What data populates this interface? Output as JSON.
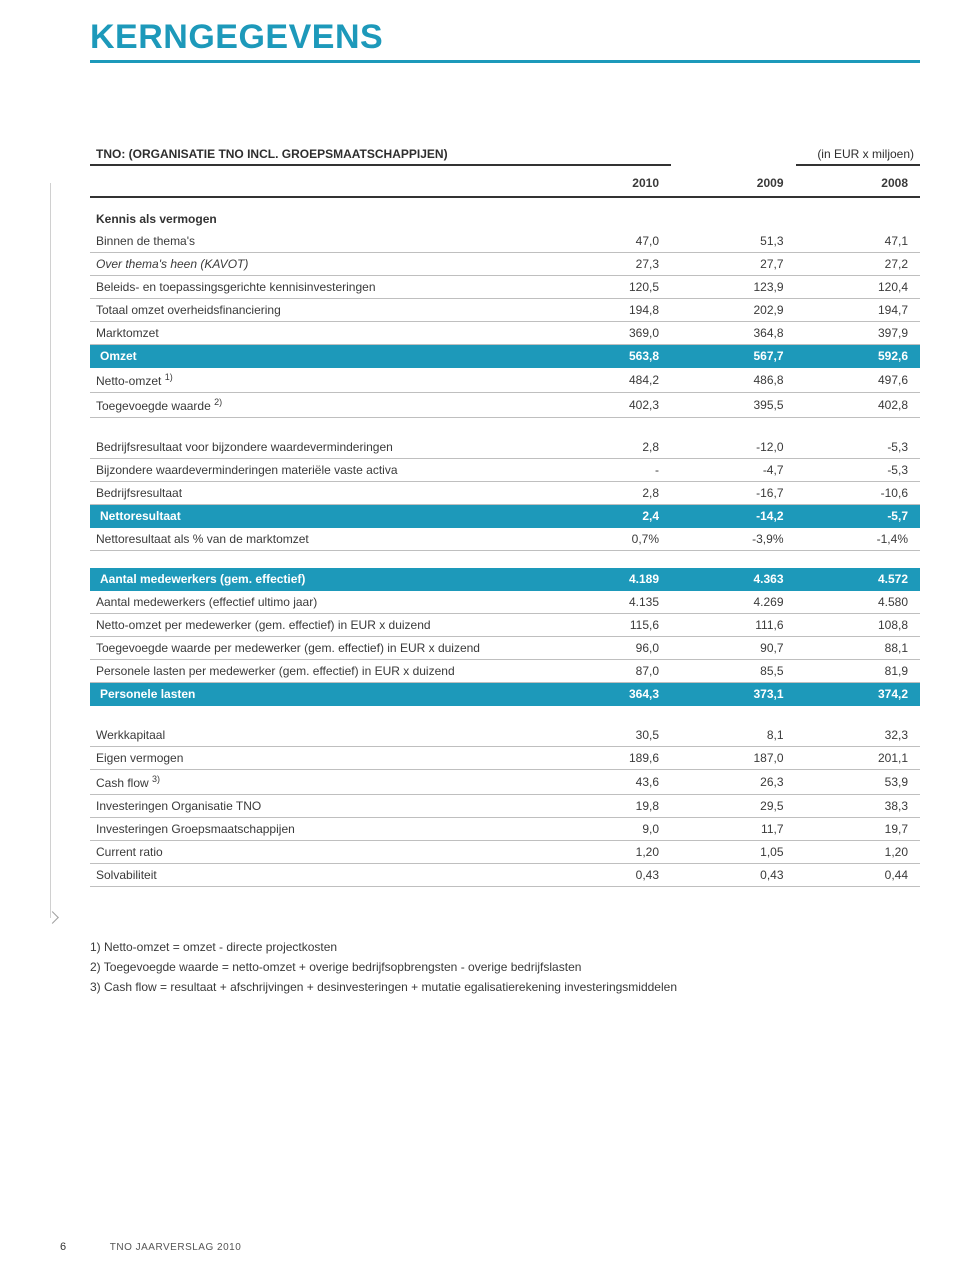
{
  "page_title": "KERNGEGEVENS",
  "subtitle": "TNO: (ORGANISATIE TNO INCL. GROEPSMAATSCHAPPIJEN)",
  "unit_label": "(in EUR x miljoen)",
  "colors": {
    "accent": "#1d99ba",
    "text": "#3a3a3a",
    "rule": "#bfbfbf",
    "heavy_rule": "#333333",
    "row_highlight_bg": "#1d99ba",
    "row_highlight_text": "#ffffff"
  },
  "years": [
    "2010",
    "2009",
    "2008"
  ],
  "sections": [
    {
      "heading": "Kennis als vermogen",
      "rows": [
        {
          "label": "Binnen de thema's",
          "fstyle": "italic",
          "vals": [
            "47,0",
            "51,3",
            "47,1"
          ]
        },
        {
          "label": "Over thema's heen (KAVOT)",
          "style": "italic",
          "vals": [
            "27,3",
            "27,7",
            "27,2"
          ]
        },
        {
          "label": "Beleids- en toepassingsgerichte kennisinvesteringen",
          "vals": [
            "120,5",
            "123,9",
            "120,4"
          ]
        },
        {
          "label": "Totaal omzet overheidsfinanciering",
          "vals": [
            "194,8",
            "202,9",
            "194,7"
          ]
        },
        {
          "label": "Marktomzet",
          "vals": [
            "369,0",
            "364,8",
            "397,9"
          ]
        },
        {
          "label": "Omzet",
          "highlight": true,
          "vals": [
            "563,8",
            "567,7",
            "592,6"
          ]
        },
        {
          "label": "Netto-omzet",
          "sup": "1)",
          "vals": [
            "484,2",
            "486,8",
            "497,6"
          ]
        },
        {
          "label": "Toegevoegde waarde",
          "sup": "2)",
          "vals": [
            "402,3",
            "395,5",
            "402,8"
          ]
        }
      ]
    },
    {
      "rows": [
        {
          "label": "Bedrijfsresultaat voor bijzondere waardeverminderingen",
          "vals": [
            "2,8",
            "-12,0",
            "-5,3"
          ]
        },
        {
          "label": "Bijzondere waardeverminderingen materiële vaste activa",
          "vals": [
            "-",
            "-4,7",
            "-5,3"
          ]
        },
        {
          "label": "Bedrijfsresultaat",
          "vals": [
            "2,8",
            "-16,7",
            "-10,6"
          ]
        },
        {
          "label": "Nettoresultaat",
          "highlight": true,
          "vals": [
            "2,4",
            "-14,2",
            "-5,7"
          ]
        },
        {
          "label": "Nettoresultaat als % van de marktomzet",
          "vals": [
            "0,7%",
            "-3,9%",
            "-1,4%"
          ]
        }
      ]
    },
    {
      "rows": [
        {
          "label": "Aantal medewerkers (gem. effectief)",
          "highlight": true,
          "vals": [
            "4.189",
            "4.363",
            "4.572"
          ]
        },
        {
          "label": "Aantal medewerkers (effectief ultimo jaar)",
          "vals": [
            "4.135",
            "4.269",
            "4.580"
          ]
        },
        {
          "label": "Netto-omzet per medewerker (gem. effectief) in EUR x duizend",
          "vals": [
            "115,6",
            "111,6",
            "108,8"
          ]
        },
        {
          "label": "Toegevoegde waarde per medewerker (gem. effectief) in EUR x duizend",
          "vals": [
            "96,0",
            "90,7",
            "88,1"
          ]
        },
        {
          "label": "Personele lasten per medewerker (gem. effectief) in EUR x duizend",
          "vals": [
            "87,0",
            "85,5",
            "81,9"
          ]
        },
        {
          "label": "Personele lasten",
          "highlight": true,
          "vals": [
            "364,3",
            "373,1",
            "374,2"
          ]
        }
      ]
    },
    {
      "rows": [
        {
          "label": "Werkkapitaal",
          "vals": [
            "30,5",
            "8,1",
            "32,3"
          ]
        },
        {
          "label": "Eigen vermogen",
          "vals": [
            "189,6",
            "187,0",
            "201,1"
          ]
        },
        {
          "label": "Cash flow",
          "sup": "3)",
          "vals": [
            "43,6",
            "26,3",
            "53,9"
          ]
        },
        {
          "label": "Investeringen Organisatie TNO",
          "vals": [
            "19,8",
            "29,5",
            "38,3"
          ]
        },
        {
          "label": "Investeringen Groepsmaatschappijen",
          "vals": [
            "9,0",
            "11,7",
            "19,7"
          ]
        },
        {
          "label": "Current ratio",
          "vals": [
            "1,20",
            "1,05",
            "1,20"
          ]
        },
        {
          "label": "Solvabiliteit",
          "vals": [
            "0,43",
            "0,43",
            "0,44"
          ]
        }
      ]
    }
  ],
  "footnotes": [
    "1) Netto-omzet = omzet - directe projectkosten",
    "2) Toegevoegde waarde = netto-omzet + overige bedrijfsopbrengsten - overige bedrijfslasten",
    "3) Cash flow = resultaat + afschrijvingen + desinvesteringen + mutatie egalisatierekening investeringsmiddelen"
  ],
  "footer": {
    "page_number": "6",
    "doc_title": "TNO JAARVERSLAG 2010"
  }
}
